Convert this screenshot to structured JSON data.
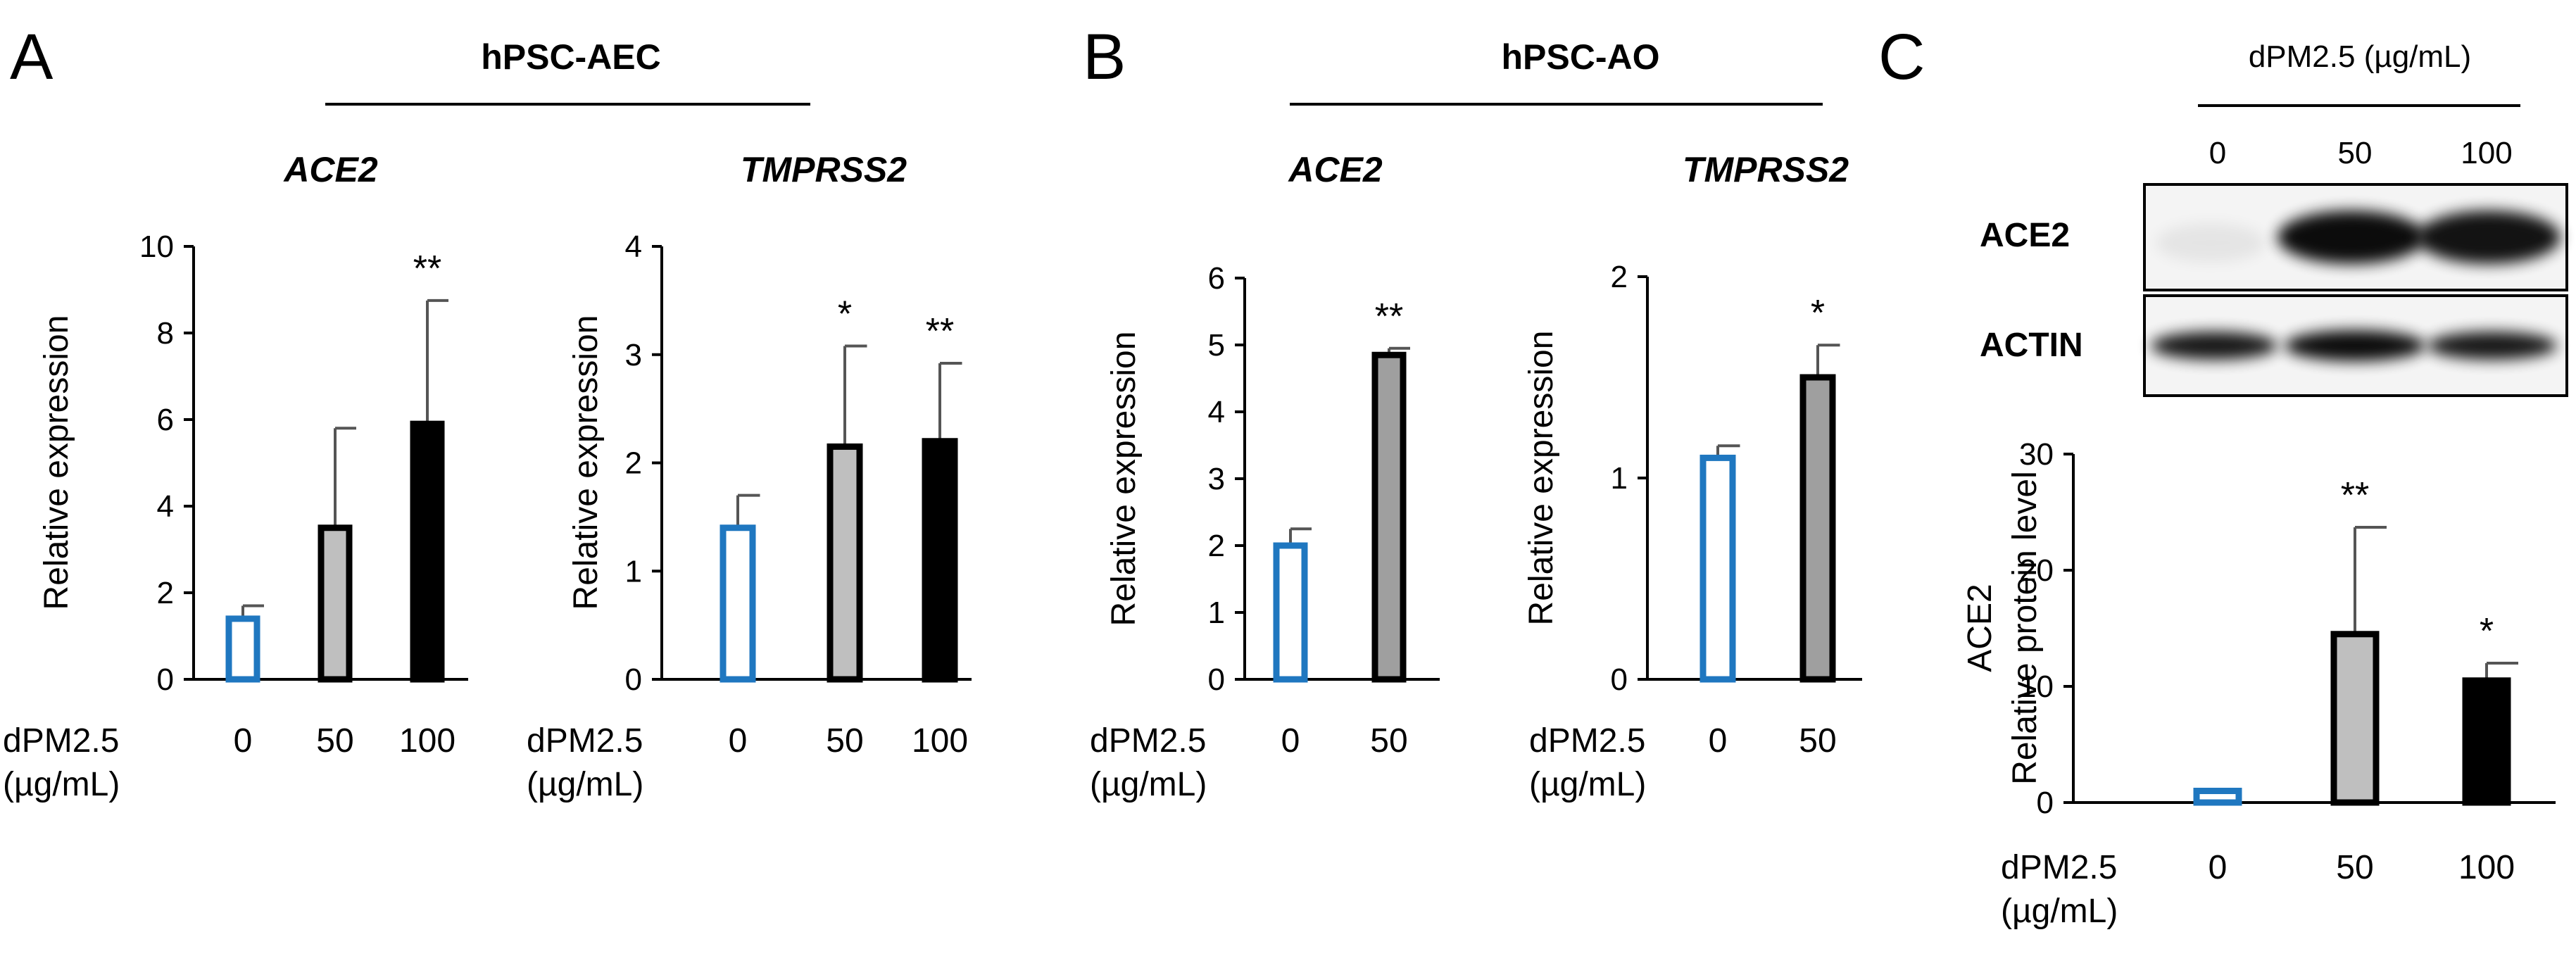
{
  "chart_data": [
    {
      "id": "A-ACE2",
      "type": "bar",
      "panel": "A",
      "group_title": "hPSC-AEC",
      "title": "ACE2",
      "xlabel": "dPM2.5 (µg/mL)",
      "xlabel_lines": [
        "dPM2.5",
        "(µg/mL)"
      ],
      "ylabel": "Relative expression",
      "categories": [
        "0",
        "50",
        "100"
      ],
      "values": [
        1.4,
        3.5,
        5.9
      ],
      "errors": [
        0.3,
        2.3,
        2.85
      ],
      "significance": [
        "",
        "",
        "**"
      ],
      "ylim": [
        0,
        10
      ],
      "yticks": [
        "0",
        "2",
        "4",
        "6",
        "8",
        "10"
      ],
      "bar_colors": [
        "#ffffff",
        "#bfbfbf",
        "#000000"
      ]
    },
    {
      "id": "A-TMPRSS2",
      "type": "bar",
      "panel": "A",
      "group_title": "hPSC-AEC",
      "title": "TMPRSS2",
      "xlabel": "dPM2.5 (µg/mL)",
      "xlabel_lines": [
        "dPM2.5",
        "(µg/mL)"
      ],
      "ylabel": "Relative expression",
      "categories": [
        "0",
        "50",
        "100"
      ],
      "values": [
        1.4,
        2.15,
        2.2
      ],
      "errors": [
        0.3,
        0.93,
        0.72
      ],
      "significance": [
        "",
        "*",
        "**"
      ],
      "ylim": [
        0,
        4
      ],
      "yticks": [
        "0",
        "1",
        "2",
        "3",
        "4"
      ],
      "bar_colors": [
        "#ffffff",
        "#bfbfbf",
        "#000000"
      ]
    },
    {
      "id": "B-ACE2",
      "type": "bar",
      "panel": "B",
      "group_title": "hPSC-AO",
      "title": "ACE2",
      "xlabel": "dPM2.5 (µg/mL)",
      "xlabel_lines": [
        "dPM2.5",
        "(µg/mL)"
      ],
      "ylabel": "Relative expression",
      "categories": [
        "0",
        "50"
      ],
      "values": [
        2.0,
        4.85
      ],
      "errors": [
        0.25,
        0.1
      ],
      "significance": [
        "",
        "**"
      ],
      "ylim": [
        0,
        6
      ],
      "yticks": [
        "0",
        "1",
        "2",
        "3",
        "4",
        "5",
        "6"
      ],
      "bar_colors": [
        "#ffffff",
        "#9f9f9f"
      ]
    },
    {
      "id": "B-TMPRSS2",
      "type": "bar",
      "panel": "B",
      "group_title": "hPSC-AO",
      "title": "TMPRSS2",
      "xlabel": "dPM2.5 (µg/mL)",
      "xlabel_lines": [
        "dPM2.5",
        "(µg/mL)"
      ],
      "ylabel": "Relative expression",
      "categories": [
        "0",
        "50"
      ],
      "values": [
        1.1,
        1.5
      ],
      "errors": [
        0.06,
        0.16
      ],
      "significance": [
        "",
        "*"
      ],
      "ylim": [
        0,
        2
      ],
      "yticks": [
        "0",
        "1",
        "2"
      ],
      "bar_colors": [
        "#ffffff",
        "#9f9f9f"
      ]
    },
    {
      "id": "C-ACE2-protein",
      "type": "bar",
      "panel": "C",
      "title": "",
      "xlabel": "dPM2.5 (µg/mL)",
      "xlabel_lines": [
        "dPM2.5",
        "(µg/mL)"
      ],
      "ylabel": "ACE2 Relative protein level",
      "ylabel_lines": [
        "ACE2",
        "Relative protein level"
      ],
      "categories": [
        "0",
        "50",
        "100"
      ],
      "values": [
        1.0,
        14.5,
        10.5
      ],
      "errors": [
        0.0,
        9.2,
        1.5
      ],
      "significance": [
        "",
        "**",
        "*"
      ],
      "ylim": [
        0,
        30
      ],
      "yticks": [
        "0",
        "10",
        "20",
        "30"
      ],
      "bar_colors": [
        "#ffffff",
        "#bfbfbf",
        "#000000"
      ]
    }
  ],
  "colors": {
    "control_outline": "#1f77c0",
    "axis": "#000000",
    "error_bar": "#555555"
  },
  "panels": {
    "a_letter": "A",
    "b_letter": "B",
    "c_letter": "C",
    "a_group": "hPSC-AEC",
    "b_group": "hPSC-AO"
  },
  "western_blot": {
    "header": "dPM2.5 (µg/mL)",
    "doses": [
      "0",
      "50",
      "100"
    ],
    "rows": [
      {
        "label": "ACE2",
        "intensities": [
          0.06,
          0.95,
          0.92
        ]
      },
      {
        "label": "ACTIN",
        "intensities": [
          0.9,
          0.95,
          0.9
        ]
      }
    ]
  }
}
